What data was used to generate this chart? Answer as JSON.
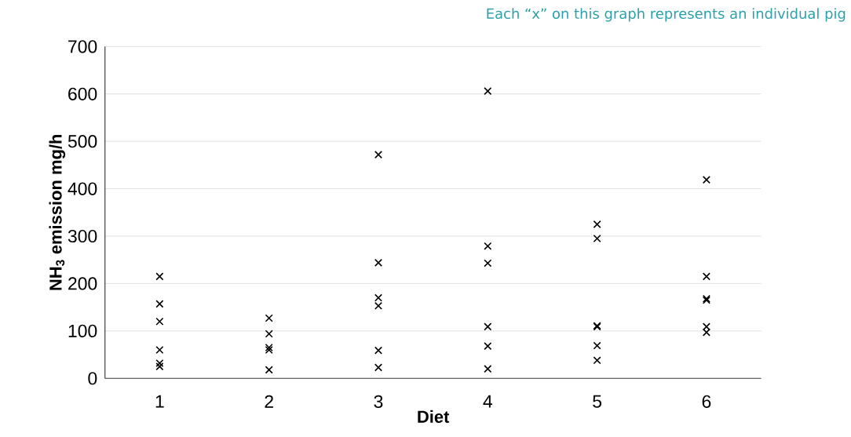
{
  "chart_data": {
    "type": "scatter",
    "xlabel": "Diet",
    "ylabel": "NH$_{3}$ emission mg/h",
    "annotations": [
      "Each “x” on this graph represents an individual pig"
    ],
    "series": [
      {
        "color": "#000000",
        "x": [
          1,
          1,
          1,
          1,
          1,
          1,
          2,
          2,
          2,
          2,
          2,
          3,
          3,
          3,
          3,
          3,
          3,
          4,
          4,
          4,
          4,
          4,
          4,
          5,
          5,
          5,
          5,
          5,
          5,
          6,
          6,
          6,
          6,
          6,
          6
        ],
        "values": [
          215,
          157,
          120,
          60,
          32,
          25,
          127,
          94,
          65,
          60,
          18,
          472,
          244,
          170,
          153,
          59,
          23,
          606,
          279,
          243,
          109,
          68,
          20,
          325,
          295,
          111,
          109,
          69,
          38,
          419,
          215,
          168,
          165,
          109,
          97
        ]
      }
    ],
    "xlim": [
      0.5,
      6.5
    ],
    "xticks": [
      1,
      2,
      3,
      4,
      5,
      6
    ],
    "ylim": [
      0,
      700
    ],
    "yticks": [
      0,
      100,
      200,
      300,
      400,
      500,
      600,
      700
    ],
    "grid": "y",
    "marker": "cross"
  }
}
